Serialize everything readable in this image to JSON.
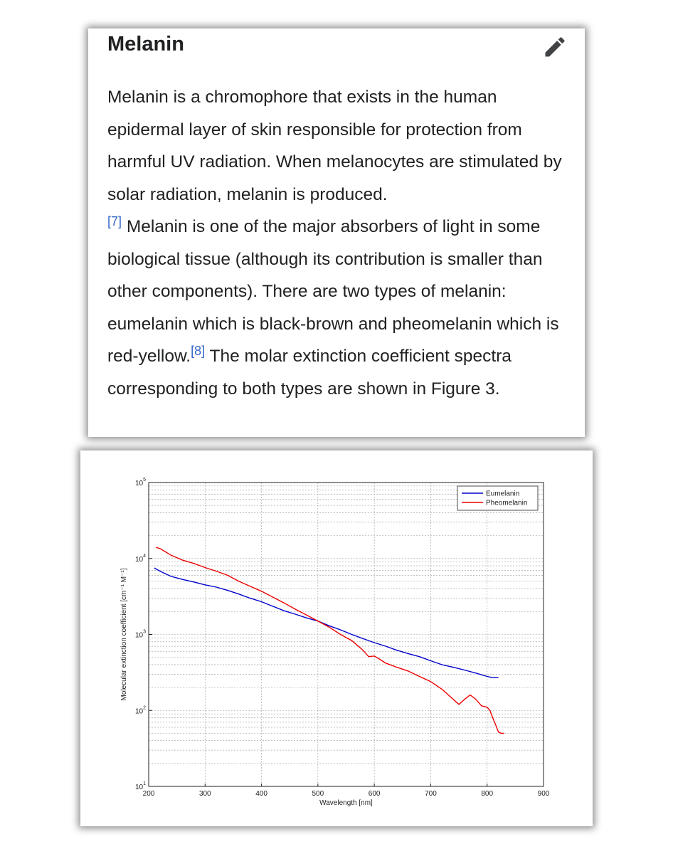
{
  "article": {
    "heading": "Melanin",
    "p1": "Melanin is a chromophore that exists in the human epidermal layer of skin responsible for protection from harmful UV radiation. When melanocytes are stimulated by solar radiation, melanin is produced.",
    "cite1": "[7]",
    "p2": " Melanin is one of the major absorbers of light in some biological tissue (although its contribution is smaller than other components). There are two types of melanin: eumelanin which is black-brown and pheomelanin which is red-yellow.",
    "cite2": "[8]",
    "p3": " The molar extinction coefficient spectra corresponding to both types are shown in Figure 3.",
    "edit_icon": "pencil-icon"
  },
  "chart_data": {
    "type": "line",
    "xlabel": "Wavelength [nm]",
    "ylabel": "Molecular extinction coefficient [cm⁻¹ M⁻¹]",
    "xlim": [
      200,
      900
    ],
    "ylim": [
      10,
      100000
    ],
    "yscale": "log",
    "grid": true,
    "legend_position": "top-right",
    "x_ticks": [
      "200",
      "300",
      "400",
      "500",
      "600",
      "700",
      "800",
      "900"
    ],
    "y_ticks": [
      {
        "base": "10",
        "exp": "1"
      },
      {
        "base": "10",
        "exp": "2"
      },
      {
        "base": "10",
        "exp": "3"
      },
      {
        "base": "10",
        "exp": "4"
      },
      {
        "base": "10",
        "exp": "5"
      }
    ],
    "series": [
      {
        "name": "Eumelanin",
        "color": "#0000cc",
        "x": [
          210,
          220,
          240,
          260,
          280,
          300,
          320,
          340,
          360,
          380,
          400,
          420,
          440,
          460,
          480,
          500,
          520,
          540,
          560,
          580,
          600,
          620,
          640,
          660,
          680,
          700,
          720,
          740,
          760,
          780,
          800,
          810,
          820
        ],
        "y": [
          7500,
          6800,
          5800,
          5300,
          4900,
          4500,
          4200,
          3800,
          3400,
          3000,
          2700,
          2350,
          2050,
          1850,
          1650,
          1500,
          1300,
          1150,
          1000,
          880,
          780,
          700,
          620,
          560,
          510,
          450,
          400,
          370,
          340,
          310,
          280,
          270,
          270
        ]
      },
      {
        "name": "Pheomelanin",
        "color": "#ee0000",
        "x": [
          213,
          220,
          240,
          260,
          280,
          300,
          320,
          340,
          360,
          380,
          400,
          420,
          440,
          460,
          480,
          500,
          520,
          540,
          560,
          580,
          590,
          600,
          610,
          620,
          640,
          660,
          680,
          700,
          720,
          740,
          750,
          760,
          770,
          780,
          790,
          800,
          805,
          810,
          815,
          820,
          825,
          830
        ],
        "y": [
          14000,
          13500,
          11000,
          9500,
          8600,
          7600,
          6800,
          6000,
          5000,
          4300,
          3700,
          3100,
          2600,
          2150,
          1800,
          1500,
          1250,
          1000,
          830,
          620,
          510,
          520,
          470,
          420,
          370,
          330,
          280,
          240,
          190,
          140,
          120,
          140,
          160,
          140,
          115,
          110,
          100,
          80,
          65,
          52,
          50,
          50
        ]
      }
    ]
  }
}
